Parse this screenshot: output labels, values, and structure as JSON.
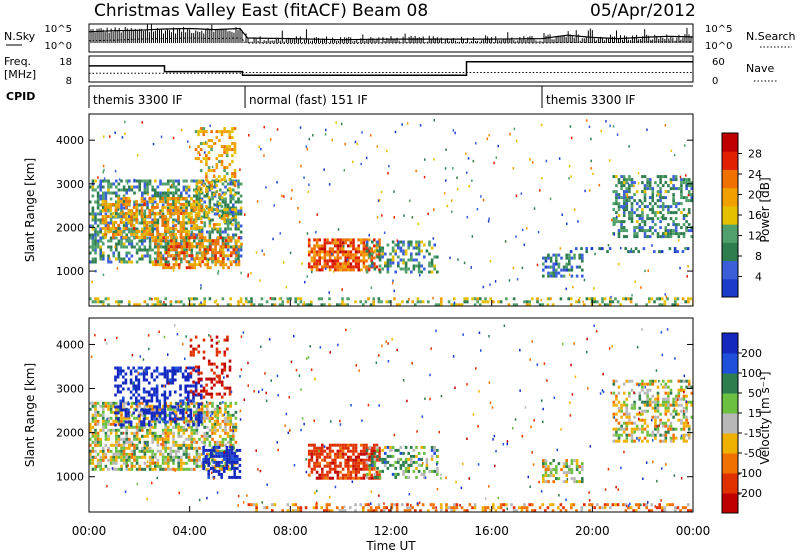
{
  "header": {
    "station": "Christmas Valley East (fitACF)",
    "beam": "Beam 08",
    "date": "05/Apr/2012"
  },
  "colors": {
    "power_scale": [
      "#1a3cc8",
      "#3a5fd8",
      "#2e7d4f",
      "#4fa06a",
      "#e6c000",
      "#f0a000",
      "#f07000",
      "#e02000",
      "#c00000"
    ],
    "velocity_scale": [
      "#1428c0",
      "#1e50dc",
      "#2e7d4f",
      "#6cc040",
      "#c0c0c0",
      "#f0b000",
      "#f07000",
      "#e03000",
      "#c00000"
    ],
    "ground_scatter": "#b8b8b8",
    "trace": "#000000"
  },
  "chart_data": [
    {
      "type": "line",
      "title": "N.Sky / N.Search",
      "left_label": "N.Sky",
      "right_label": "N.Search",
      "left_ticks": [
        "10^5",
        "10^0"
      ],
      "right_ticks": [
        "10^5",
        "10^0"
      ],
      "ylim": [
        0,
        5
      ],
      "log_scale": true,
      "x_hours": [
        0,
        1,
        2,
        3,
        4,
        5,
        6,
        6.3,
        8,
        10,
        12,
        14,
        16,
        18,
        19,
        20,
        21,
        22,
        23,
        24
      ],
      "series": [
        {
          "name": "N.Sky",
          "values": [
            3.6,
            3.8,
            3.9,
            4.1,
            4.2,
            4.0,
            4.2,
            2.5,
            2.4,
            2.2,
            2.3,
            2.3,
            2.3,
            2.4,
            3.0,
            2.6,
            2.4,
            2.6,
            2.8,
            2.7
          ]
        },
        {
          "name": "N.Search",
          "values": [
            2.0,
            2.1,
            2.3,
            2.4,
            2.5,
            2.4,
            2.5,
            1.6,
            1.5,
            1.5,
            1.6,
            1.6,
            1.6,
            1.6,
            1.7,
            1.7,
            1.7,
            1.8,
            1.8,
            1.8
          ]
        }
      ]
    },
    {
      "type": "line",
      "title": "Freq. / Nave",
      "left_label": "Freq.",
      "left_unit": "[MHz]",
      "right_label": "Nave",
      "left_ticks": [
        "18",
        "8"
      ],
      "right_ticks": [
        "60",
        "0"
      ],
      "ylim": [
        8,
        18
      ],
      "right_ylim": [
        0,
        60
      ],
      "series": [
        {
          "name": "Freq.",
          "x": [
            0,
            3,
            3,
            6.1,
            6.1,
            15,
            15,
            24
          ],
          "values": [
            14.2,
            14.2,
            12.0,
            12.0,
            10.6,
            10.6,
            15.8,
            15.8
          ]
        },
        {
          "name": "Nave",
          "x": [
            0,
            6.1,
            6.1,
            24
          ],
          "values": [
            20,
            20,
            22,
            22
          ]
        }
      ]
    },
    {
      "type": "table",
      "title": "CPID",
      "label": "CPID",
      "segments": [
        {
          "start": 0,
          "end": 6.2,
          "label": "themis 3300 IF"
        },
        {
          "start": 6.2,
          "end": 18.0,
          "label": "normal (fast) 151 IF"
        },
        {
          "start": 18.0,
          "end": 24,
          "label": "themis 3300 IF"
        }
      ]
    },
    {
      "type": "heatmap",
      "ylabel": "Slant Range [km]",
      "yticks": [
        1000,
        2000,
        3000,
        4000
      ],
      "ylim": [
        200,
        4600
      ],
      "xlim": [
        0,
        24
      ],
      "colorbar_label": "Power [dB]",
      "colorbar_ticks": [
        4,
        8,
        12,
        16,
        20,
        24,
        28
      ],
      "colorbar_range": [
        0,
        32
      ],
      "regions": [
        {
          "x0": 0.0,
          "x1": 6.0,
          "y0": 1200,
          "y1": 3100,
          "value": 10,
          "density": 0.55
        },
        {
          "x0": 0.5,
          "x1": 4.5,
          "y0": 1800,
          "y1": 2700,
          "value": 20,
          "density": 0.5
        },
        {
          "x0": 2.5,
          "x1": 6.0,
          "y0": 1100,
          "y1": 1800,
          "value": 22,
          "density": 0.5
        },
        {
          "x0": 4.2,
          "x1": 5.8,
          "y0": 2000,
          "y1": 4300,
          "value": 18,
          "density": 0.3
        },
        {
          "x0": 8.7,
          "x1": 11.5,
          "y0": 1000,
          "y1": 1750,
          "value": 24,
          "density": 0.7
        },
        {
          "x0": 11.0,
          "x1": 13.8,
          "y0": 1000,
          "y1": 1700,
          "value": 10,
          "density": 0.4
        },
        {
          "x0": 18.0,
          "x1": 19.6,
          "y0": 900,
          "y1": 1400,
          "value": 8,
          "density": 0.5
        },
        {
          "x0": 20.8,
          "x1": 24.0,
          "y0": 1800,
          "y1": 3200,
          "value": 10,
          "density": 0.45
        },
        {
          "x0": 19.0,
          "x1": 24.0,
          "y0": 1450,
          "y1": 1550,
          "value": 6,
          "density": 0.4
        },
        {
          "x0": 0.0,
          "x1": 24.0,
          "y0": 230,
          "y1": 400,
          "value": 14,
          "density": 0.35
        }
      ]
    },
    {
      "type": "heatmap",
      "ylabel": "Slant Range [km]",
      "yticks": [
        1000,
        2000,
        3000,
        4000
      ],
      "ylim": [
        200,
        4600
      ],
      "xlim": [
        0,
        24
      ],
      "xticks": [
        "00:00",
        "04:00",
        "08:00",
        "12:00",
        "16:00",
        "20:00",
        "00:00"
      ],
      "xlabel": "Time UT",
      "colorbar_label": "Velocity [m s⁻¹]",
      "colorbar_ticks": [
        200,
        100,
        50,
        15,
        -15,
        -50,
        -100,
        -200
      ],
      "regions": [
        {
          "x0": 0.0,
          "x1": 5.8,
          "y0": 1200,
          "y1": 2700,
          "value": 0,
          "density": 0.6
        },
        {
          "x0": 1.0,
          "x1": 4.5,
          "y0": 2200,
          "y1": 3500,
          "value": 250,
          "density": 0.45
        },
        {
          "x0": 4.0,
          "x1": 5.6,
          "y0": 2800,
          "y1": 4200,
          "value": -220,
          "density": 0.3
        },
        {
          "x0": 4.5,
          "x1": 6.0,
          "y0": 1000,
          "y1": 1700,
          "value": 250,
          "density": 0.55
        },
        {
          "x0": 8.7,
          "x1": 11.5,
          "y0": 1000,
          "y1": 1750,
          "value": -150,
          "density": 0.7
        },
        {
          "x0": 11.0,
          "x1": 13.8,
          "y0": 1000,
          "y1": 1700,
          "value": 40,
          "density": 0.4
        },
        {
          "x0": 18.0,
          "x1": 19.6,
          "y0": 900,
          "y1": 1400,
          "value": 0,
          "density": 0.5
        },
        {
          "x0": 20.8,
          "x1": 24.0,
          "y0": 1800,
          "y1": 3200,
          "value": 0,
          "density": 0.45
        },
        {
          "x0": 6.3,
          "x1": 24.0,
          "y0": 230,
          "y1": 400,
          "value": -60,
          "density": 0.35
        }
      ]
    }
  ]
}
